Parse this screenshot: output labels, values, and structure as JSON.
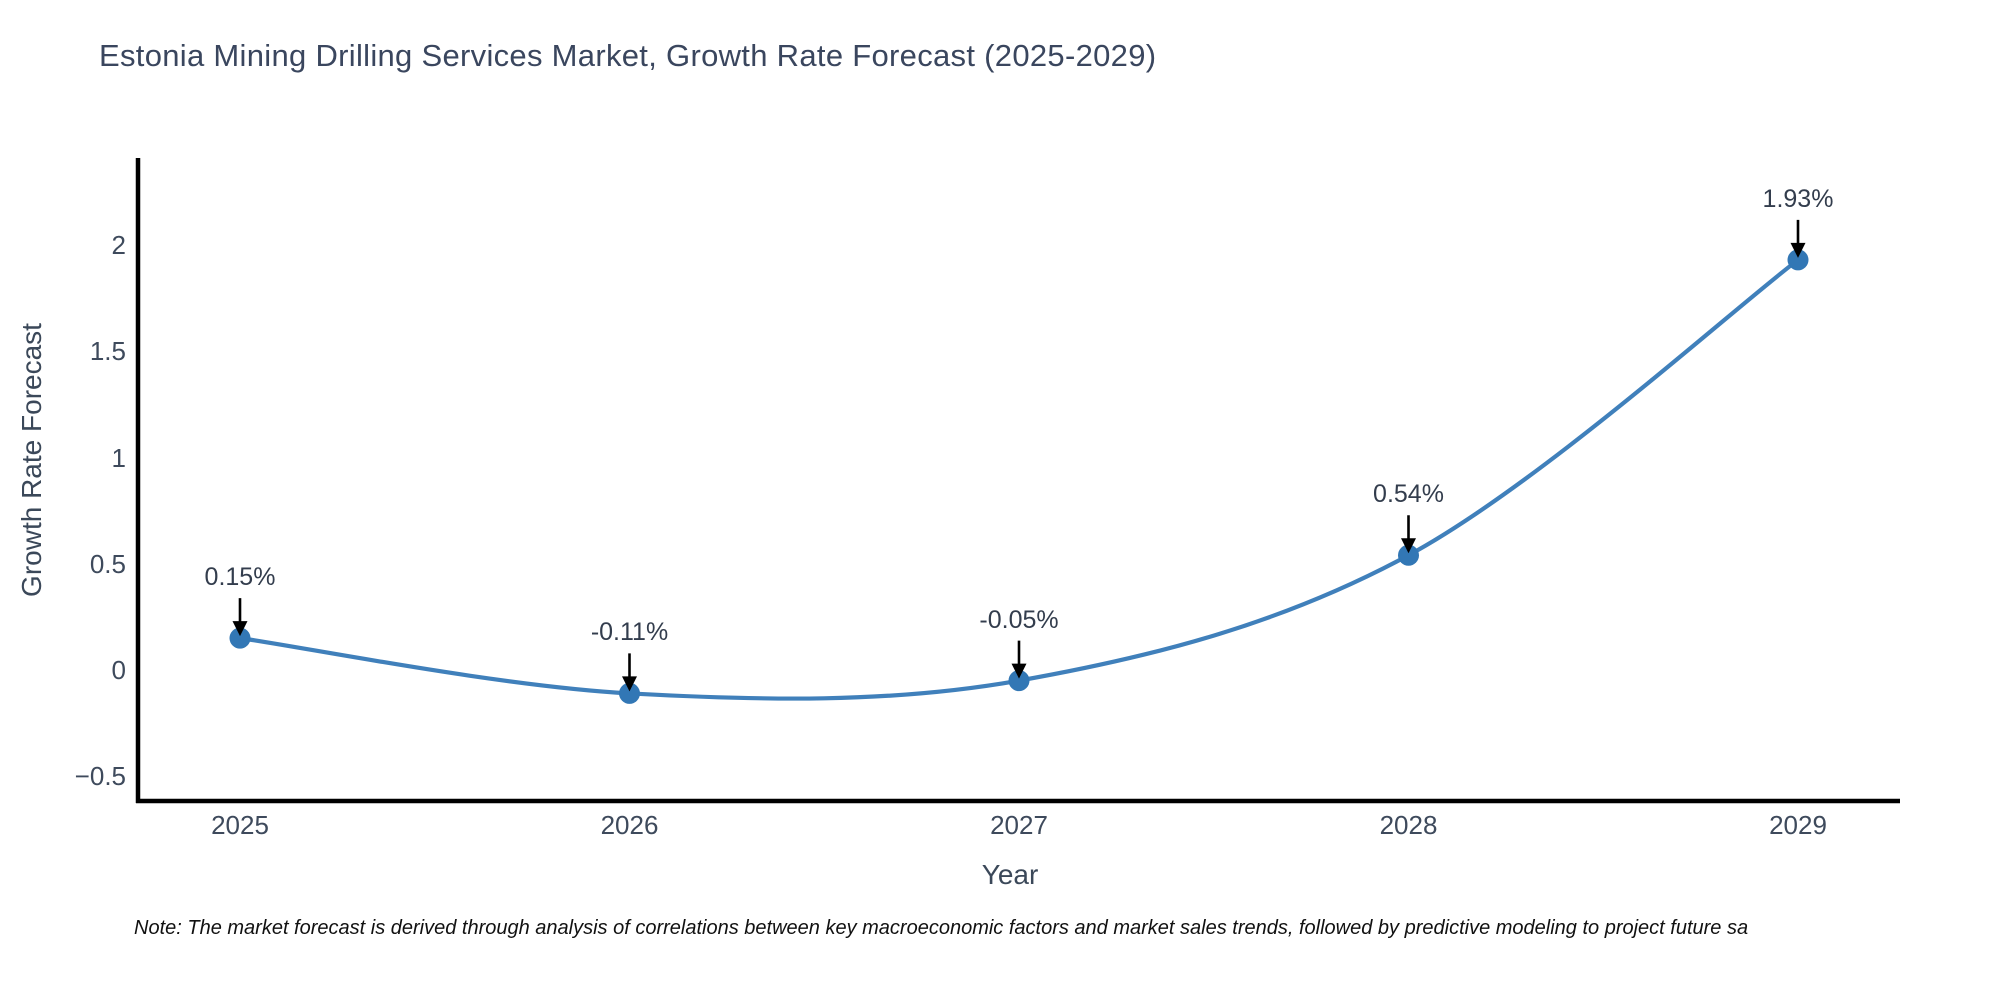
{
  "title": "Estonia Mining Drilling Services Market, Growth Rate Forecast (2025-2029)",
  "note": "Note: The market forecast is derived through analysis of correlations between key macroeconomic factors and market sales trends, followed by predictive modeling to project future sa",
  "chart_data": {
    "type": "line",
    "line_shape": "spline",
    "title": "Estonia Mining Drilling Services Market, Growth Rate Forecast (2025-2029)",
    "xlabel": "Year",
    "ylabel": "Growth Rate Forecast",
    "x": [
      2025,
      2026,
      2027,
      2028,
      2029
    ],
    "y": [
      0.15,
      -0.11,
      -0.05,
      0.54,
      1.93
    ],
    "point_labels": [
      "0.15%",
      "-0.11%",
      "-0.05%",
      "0.54%",
      "1.93%"
    ],
    "xtick_labels": [
      "2025",
      "2026",
      "2027",
      "2028",
      "2029"
    ],
    "ytick_values": [
      2,
      1.5,
      1,
      0.5,
      0,
      -0.5
    ],
    "ytick_labels": [
      "2",
      "1.5",
      "1",
      "0.5",
      "0",
      "−0.5"
    ],
    "ylim": [
      -0.6,
      2.4
    ],
    "grid": false,
    "legend": false,
    "line_color": "#4080bb",
    "marker_color": "#3277b5",
    "axis_color": "#000000",
    "annotation_arrow_color": "#000000"
  }
}
